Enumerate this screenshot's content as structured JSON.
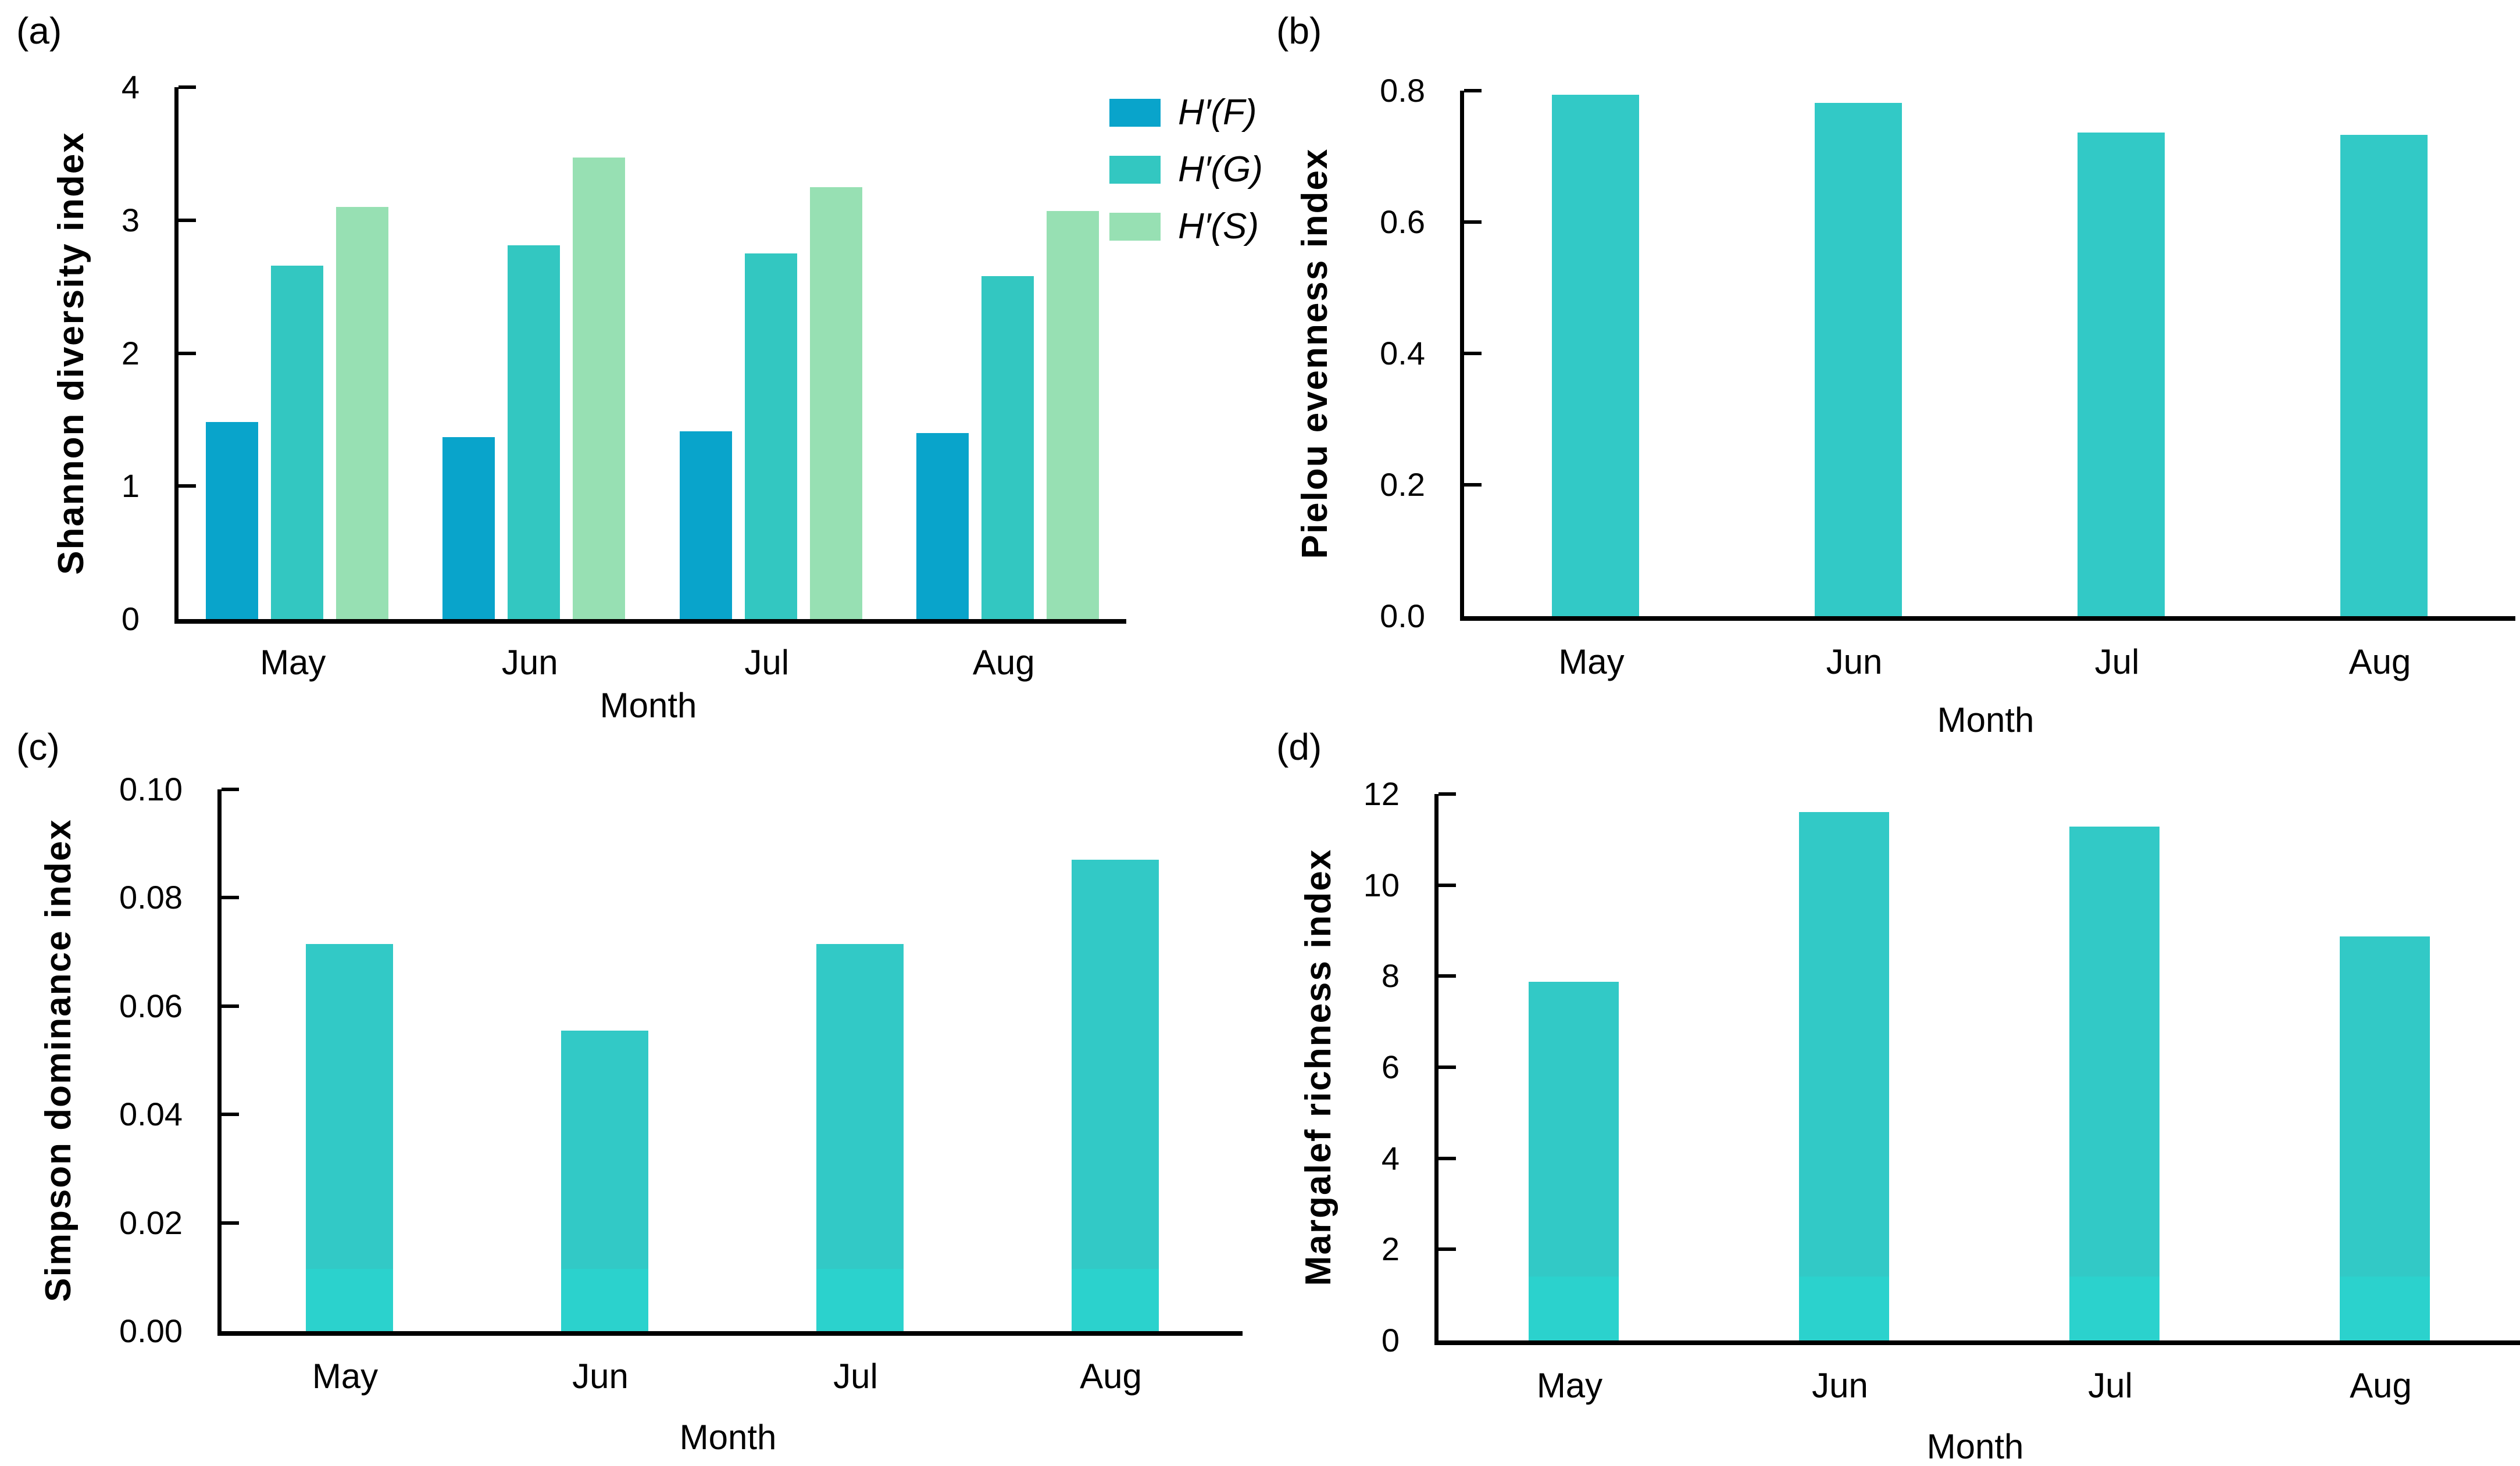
{
  "figure": {
    "background": "#ffffff",
    "text_color": "#000000",
    "axis_color": "#000000"
  },
  "chart_data": [
    {
      "type": "bar",
      "panel_label": "(a)",
      "xlabel": "Month",
      "ylabel": "Shannon diversity index",
      "categories": [
        "May",
        "Jun",
        "Jul",
        "Aug"
      ],
      "series": [
        {
          "name": "H′(F)",
          "color": "#09a4cb",
          "values": [
            1.48,
            1.37,
            1.41,
            1.4
          ]
        },
        {
          "name": "H′(G)",
          "color": "#33c7c1",
          "values": [
            2.66,
            2.81,
            2.75,
            2.58
          ]
        },
        {
          "name": "H′(S)",
          "color": "#97e0b3",
          "values": [
            3.1,
            3.47,
            3.25,
            3.07
          ]
        }
      ],
      "ylim": [
        0,
        4
      ],
      "yticks": [
        "0",
        "1",
        "2",
        "3",
        "4"
      ],
      "grid": false,
      "legend_position": "outside-upper-right"
    },
    {
      "type": "bar",
      "panel_label": "(b)",
      "xlabel": "Month",
      "ylabel": "Pielou evenness index",
      "categories": [
        "May",
        "Jun",
        "Jul",
        "Aug"
      ],
      "values": [
        0.794,
        0.781,
        0.736,
        0.733
      ],
      "color": "#32c9c6",
      "ylim": [
        0,
        0.8
      ],
      "yticks": [
        "0.0",
        "0.2",
        "0.4",
        "0.6",
        "0.8"
      ],
      "grid": false
    },
    {
      "type": "bar",
      "panel_label": "(c)",
      "xlabel": "Month",
      "ylabel": "Simpson dominance index",
      "categories": [
        "May",
        "Jun",
        "Jul",
        "Aug"
      ],
      "values": [
        0.0715,
        0.0555,
        0.0715,
        0.087
      ],
      "color": "#32c9c6",
      "band": {
        "fraction": 0.115,
        "color": "#2bd2cd"
      },
      "ylim": [
        0,
        0.1
      ],
      "yticks": [
        "0.00",
        "0.02",
        "0.04",
        "0.06",
        "0.08",
        "0.10"
      ],
      "grid": false
    },
    {
      "type": "bar",
      "panel_label": "(d)",
      "xlabel": "Month",
      "ylabel": "Margalef richness index",
      "categories": [
        "May",
        "Jun",
        "Jul",
        "Aug"
      ],
      "values": [
        7.88,
        11.6,
        11.28,
        8.87
      ],
      "color": "#32c9c6",
      "band": {
        "fraction": 0.117,
        "color": "#2bd2cd"
      },
      "ylim": [
        0,
        12
      ],
      "yticks": [
        "0",
        "2",
        "4",
        "6",
        "8",
        "10",
        "12"
      ],
      "grid": false
    }
  ]
}
